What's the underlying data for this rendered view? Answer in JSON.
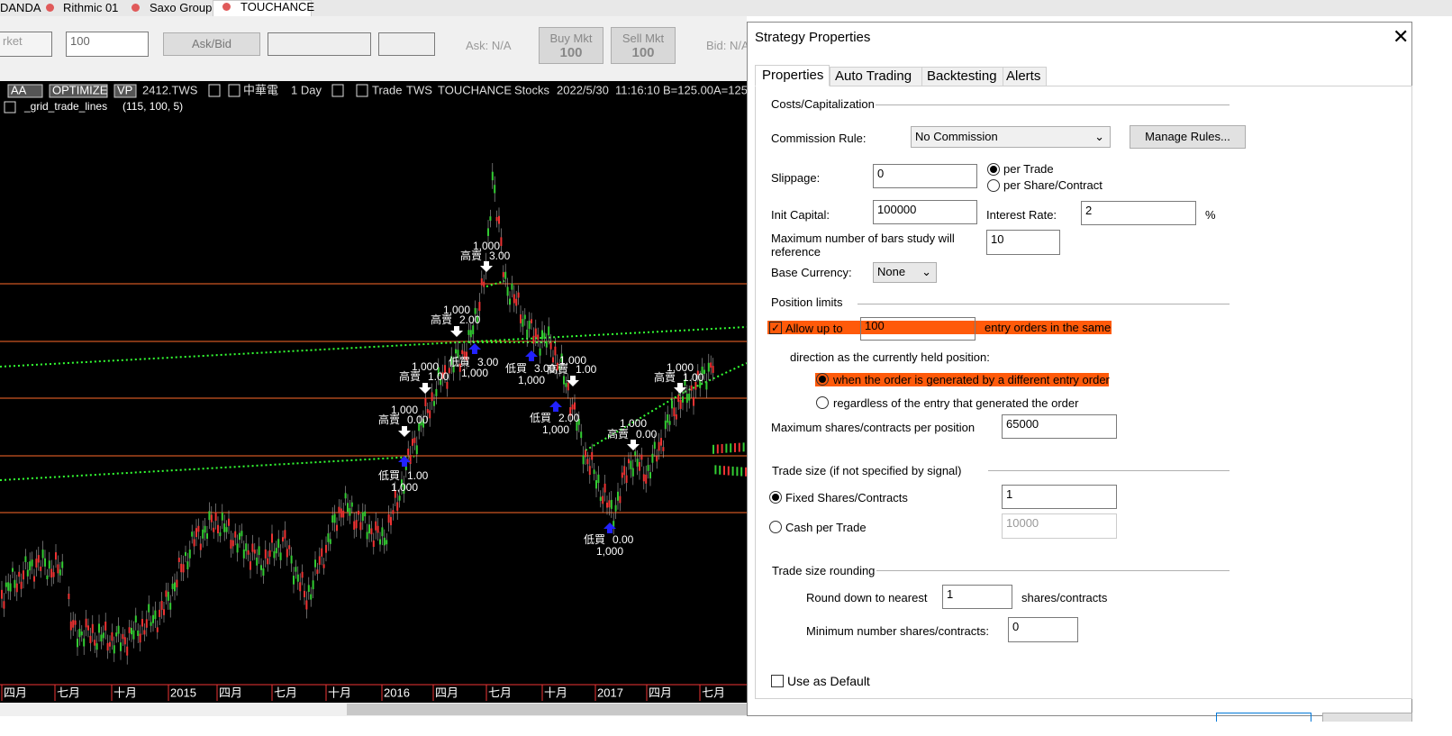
{
  "tabs": [
    "DANDA",
    "Rithmic 01",
    "Saxo Group",
    "TOUCHANCE"
  ],
  "toolbar": {
    "market": "rket",
    "quantity": "100",
    "ask_bid": "Ask/Bid",
    "ask": "Ask: N/A",
    "buy_button": {
      "label": "Buy Mkt",
      "quantity": "100"
    },
    "sell_button": {
      "label": "Sell Mkt",
      "quantity": "100"
    },
    "bid": "Bid: N/A"
  },
  "chart_header": [
    "AA",
    "OPTIMIZE",
    "VP",
    "2412.TWS",
    "中華電",
    "1 Day",
    "Trade",
    "TWS",
    "TOUCHANCE",
    "Stocks",
    "2022/5/30",
    "11:16:10",
    "B=125.00",
    "A=125"
  ],
  "indicator": {
    "name": "_grid_trade_lines",
    "params": "(115,  100,  5)"
  },
  "x_axis_labels": [
    "四月",
    "七月",
    "十月",
    "2015",
    "四月",
    "七月",
    "十月",
    "2016",
    "四月",
    "七月",
    "十月",
    "2017",
    "四月",
    "七月"
  ],
  "annotations": [
    {
      "label": "高賣",
      "price": "3.00",
      "qty": "1,000"
    },
    {
      "label": "高賣",
      "price": "2.00",
      "qty": "1,000"
    },
    {
      "label": "高賣",
      "price": "1.00",
      "qty": "1,000"
    },
    {
      "label": "高賣",
      "price": "0.00",
      "qty": "1,000"
    },
    {
      "label": "低買",
      "price": "1.00",
      "qty": "1,000"
    },
    {
      "label": "低買",
      "price": "3.00",
      "qty": "1,000"
    },
    {
      "label": "低買",
      "price": "3.00",
      "qty": "1,000"
    },
    {
      "label": "高賣",
      "price": "1.00",
      "qty": "1,000"
    },
    {
      "label": "低買",
      "price": "2.00",
      "qty": "1,000"
    },
    {
      "label": "低買",
      "price": "0.00",
      "qty": "1,000"
    },
    {
      "label": "高賣",
      "price": "0.00",
      "qty": "1,000"
    },
    {
      "label": "高賣",
      "price": "1.00",
      "qty": "1,000"
    }
  ],
  "dialog": {
    "title": "Strategy Properties",
    "tabs": [
      "Properties",
      "Auto Trading",
      "Backtesting",
      "Alerts"
    ],
    "costs": {
      "heading": "Costs/Capitalization",
      "commission_label": "Commission Rule:",
      "commission_value": "No Commission",
      "manage_rules": "Manage Rules...",
      "slippage_label": "Slippage:",
      "slippage_value": "0",
      "per_trade": "per Trade",
      "per_share": "per Share/Contract",
      "init_capital_label": "Init Capital:",
      "init_capital_value": "100000",
      "interest_rate_label": "Interest Rate:",
      "interest_rate_value": "2",
      "percent": "%",
      "max_bars_label": [
        "Maximum number of bars study will",
        "reference"
      ],
      "max_bars_value": "10",
      "base_currency_label": "Base Currency:",
      "base_currency_value": "None"
    },
    "position_limits": {
      "heading": "Position limits",
      "allow_label": "Allow up to",
      "allow_value": "100",
      "allow_suffix": "entry orders in the same",
      "direction": "direction as the currently held position:",
      "option_different": "when the order is generated by a different entry order",
      "option_regardless": "regardless of the entry that generated the order",
      "max_shares_label": "Maximum shares/contracts per position",
      "max_shares_value": "65000"
    },
    "trade_size": {
      "heading": "Trade size (if not specified by signal)",
      "fixed_label": "Fixed Shares/Contracts",
      "fixed_value": "1",
      "cash_label": "Cash per Trade",
      "cash_value": "10000"
    },
    "rounding": {
      "heading": "Trade size rounding",
      "round_label": "Round down to nearest",
      "round_value": "1",
      "round_suffix": "shares/contracts",
      "min_label": "Minimum number shares/contracts:",
      "min_value": "0"
    },
    "use_default": "Use as Default"
  }
}
